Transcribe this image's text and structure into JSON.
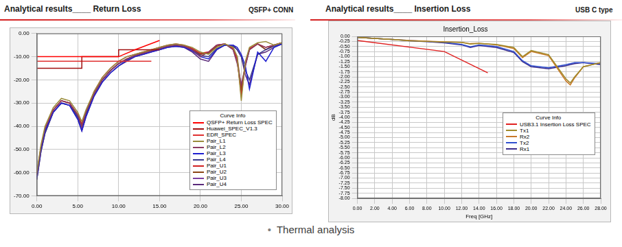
{
  "slide": {
    "panels": [
      {
        "heading": "Analytical results____ Return Loss",
        "tag": "QSFP+ CONN"
      },
      {
        "heading": "Analytical results____ Insertion Loss",
        "tag": "USB C type"
      }
    ],
    "caption": "Thermal analysis"
  },
  "chart_data": [
    {
      "type": "line",
      "grid": true,
      "legend": "lower right",
      "legend_title": "Curve Info",
      "xlim": [
        0,
        30
      ],
      "xticks": [
        {
          "value": 0,
          "label": "0.00"
        },
        {
          "value": 5,
          "label": "5.00"
        },
        {
          "value": 10,
          "label": "10.00"
        },
        {
          "value": 15,
          "label": "15.00"
        },
        {
          "value": 20,
          "label": "20.00"
        },
        {
          "value": 25,
          "label": "25.00"
        },
        {
          "value": 30,
          "label": "30.00"
        }
      ],
      "ylim": [
        -70,
        0
      ],
      "yticks": [
        {
          "value": -70,
          "label": "-70.00"
        },
        {
          "value": -60,
          "label": "-60.00"
        },
        {
          "value": -50,
          "label": "-50.00"
        },
        {
          "value": -40,
          "label": "-40.00"
        },
        {
          "value": -30,
          "label": "-30.00"
        },
        {
          "value": -20,
          "label": "-20.00"
        },
        {
          "value": -10,
          "label": "-10.00"
        },
        {
          "value": 0,
          "label": "0.00"
        }
      ],
      "x": [
        0,
        0.5,
        1,
        2,
        3,
        4,
        5,
        5.5,
        6,
        7,
        8,
        9,
        10,
        11,
        12,
        13,
        14,
        15,
        16,
        17,
        18,
        19,
        20,
        21,
        22,
        23,
        24,
        24.5,
        25,
        25.5,
        26,
        27,
        28,
        29,
        30
      ],
      "series": [
        {
          "name": "QSFP+ Return Loss SPEC",
          "color": "#ff0000",
          "x": [
            0,
            10,
            12,
            15
          ],
          "values": [
            -10,
            -10,
            -7,
            -3
          ]
        },
        {
          "name": "Huawei_SPEC_V1.3",
          "color": "#a01010",
          "x": [
            0,
            5.5,
            5.5,
            10,
            10,
            15
          ],
          "values": [
            -15,
            -15,
            -10,
            -10,
            -7,
            -7
          ]
        },
        {
          "name": "EDR_SPEC",
          "color": "#e03030",
          "x": [
            0,
            14
          ],
          "values": [
            -12,
            -12
          ]
        },
        {
          "name": "Pair_L1",
          "color": "#9a8c3c",
          "values": [
            -60,
            -48,
            -40,
            -32,
            -28,
            -29,
            -34,
            -38,
            -33,
            -25,
            -19,
            -15,
            -12,
            -10,
            -9,
            -8,
            -7,
            -6,
            -5,
            -4.5,
            -5,
            -6,
            -8,
            -9,
            -6,
            -4.5,
            -6,
            -10,
            -29,
            -12,
            -6,
            -4,
            -3.5,
            -5,
            -4
          ]
        },
        {
          "name": "Pair_L2",
          "color": "#8b3a62",
          "values": [
            -61,
            -49,
            -41,
            -33,
            -29,
            -30,
            -35,
            -40,
            -34,
            -26,
            -20,
            -16,
            -13,
            -11,
            -9.5,
            -8.5,
            -7.5,
            -6.5,
            -5.5,
            -5,
            -5.5,
            -7,
            -10,
            -8,
            -5,
            -4.5,
            -7,
            -13,
            -22,
            -14,
            -7,
            -4.5,
            -6,
            -5,
            -4
          ]
        },
        {
          "name": "Pair_L3",
          "color": "#1f1fd0",
          "values": [
            -62,
            -50,
            -42,
            -34,
            -30,
            -31,
            -37,
            -42,
            -36,
            -27,
            -21,
            -17,
            -14,
            -11.5,
            -10,
            -9,
            -8,
            -7,
            -6,
            -5.5,
            -6,
            -7.5,
            -10,
            -11,
            -7,
            -5,
            -5,
            -6,
            -9,
            -14,
            -24,
            -8,
            -12,
            -6,
            -4.5
          ]
        },
        {
          "name": "Pair_L4",
          "color": "#3a3a8c",
          "values": [
            -63,
            -51,
            -43,
            -34,
            -30,
            -31,
            -36,
            -40,
            -35,
            -26,
            -20,
            -16,
            -13,
            -11,
            -9.5,
            -8.5,
            -7.5,
            -6.5,
            -5.5,
            -5,
            -5.5,
            -7,
            -9.5,
            -10,
            -6.5,
            -5,
            -5.5,
            -7,
            -10,
            -16,
            -20,
            -9,
            -7,
            -5.5,
            -4.5
          ]
        },
        {
          "name": "Pair_U1",
          "color": "#d02020",
          "values": [
            -60,
            -49,
            -41,
            -33,
            -29,
            -30,
            -35,
            -39,
            -34,
            -25,
            -19,
            -15,
            -12,
            -10,
            -9,
            -8,
            -7,
            -6,
            -5,
            -4.5,
            -5,
            -6.5,
            -8.5,
            -8,
            -5,
            -4.5,
            -6.5,
            -11,
            -27,
            -13,
            -6.5,
            -4.5,
            -6,
            -5,
            -4
          ]
        },
        {
          "name": "Pair_U2",
          "color": "#8b4513",
          "values": [
            -61,
            -50,
            -42,
            -33,
            -29,
            -30,
            -36,
            -40,
            -35,
            -26,
            -20,
            -16,
            -13,
            -11,
            -9.5,
            -8.5,
            -7.5,
            -6.5,
            -5.5,
            -5,
            -5.5,
            -7,
            -9,
            -8.5,
            -5.5,
            -4.5,
            -6,
            -10,
            -24,
            -13,
            -7,
            -4.5,
            -7,
            -5,
            -4
          ]
        },
        {
          "name": "Pair_U3",
          "color": "#7b3fa0",
          "values": [
            -62,
            -50,
            -42,
            -33,
            -29,
            -30,
            -36,
            -41,
            -35,
            -26,
            -20,
            -16,
            -13,
            -11,
            -9.5,
            -8.5,
            -7.5,
            -6.5,
            -5.5,
            -5,
            -5.5,
            -7,
            -9,
            -8,
            -5,
            -4.5,
            -7,
            -12,
            -25,
            -14,
            -7,
            -4.5,
            -7,
            -5,
            -4
          ]
        },
        {
          "name": "Pair_U4",
          "color": "#5a2a7a",
          "values": [
            -63,
            -51,
            -43,
            -34,
            -30,
            -31,
            -37,
            -42,
            -36,
            -27,
            -21,
            -17,
            -14,
            -12,
            -10,
            -9,
            -8,
            -7,
            -6,
            -5.5,
            -6,
            -8,
            -11,
            -12,
            -7,
            -5,
            -5,
            -7,
            -10,
            -18,
            -22,
            -9,
            -8,
            -6,
            -4.5
          ]
        }
      ]
    },
    {
      "type": "line",
      "title": "Insertion_Loss",
      "x_label": "Freq [GHz]",
      "y_label": "dB",
      "grid": true,
      "legend": "center right",
      "legend_title": "Curve Info",
      "xlim": [
        0,
        28
      ],
      "xticks": [
        {
          "value": 0,
          "label": "0.00"
        },
        {
          "value": 2,
          "label": "2.00"
        },
        {
          "value": 4,
          "label": "4.00"
        },
        {
          "value": 6,
          "label": "6.00"
        },
        {
          "value": 8,
          "label": "8.00"
        },
        {
          "value": 10,
          "label": "10.00"
        },
        {
          "value": 12,
          "label": "12.00"
        },
        {
          "value": 14,
          "label": "14.00"
        },
        {
          "value": 16,
          "label": "16.00"
        },
        {
          "value": 18,
          "label": "18.00"
        },
        {
          "value": 20,
          "label": "20.00"
        },
        {
          "value": 22,
          "label": "22.00"
        },
        {
          "value": 24,
          "label": "24.00"
        },
        {
          "value": 26,
          "label": "26.00"
        },
        {
          "value": 28,
          "label": "28.00"
        }
      ],
      "ylim": [
        -8,
        0
      ],
      "yticks": [
        {
          "value": -8,
          "label": "-8.00"
        },
        {
          "value": -7.75,
          "label": "-7.75"
        },
        {
          "value": -7.5,
          "label": "-7.50"
        },
        {
          "value": -7.25,
          "label": "-7.25"
        },
        {
          "value": -7,
          "label": "-7.00"
        },
        {
          "value": -6.75,
          "label": "-6.75"
        },
        {
          "value": -6.5,
          "label": "-6.50"
        },
        {
          "value": -6.25,
          "label": "-6.25"
        },
        {
          "value": -6,
          "label": "-6.00"
        },
        {
          "value": -5.75,
          "label": "-5.75"
        },
        {
          "value": -5.5,
          "label": "-5.50"
        },
        {
          "value": -5.25,
          "label": "-5.25"
        },
        {
          "value": -5,
          "label": "-5.00"
        },
        {
          "value": -4.75,
          "label": "-4.75"
        },
        {
          "value": -4.5,
          "label": "-4.50"
        },
        {
          "value": -4.25,
          "label": "-4.25"
        },
        {
          "value": -4,
          "label": "-4.00"
        },
        {
          "value": -3.75,
          "label": "-3.75"
        },
        {
          "value": -3.5,
          "label": "-3.50"
        },
        {
          "value": -3.25,
          "label": "-3.25"
        },
        {
          "value": -3,
          "label": "-3.00"
        },
        {
          "value": -2.75,
          "label": "-2.75"
        },
        {
          "value": -2.5,
          "label": "-2.50"
        },
        {
          "value": -2.25,
          "label": "-2.25"
        },
        {
          "value": -2,
          "label": "-2.00"
        },
        {
          "value": -1.75,
          "label": "-1.75"
        },
        {
          "value": -1.5,
          "label": "-1.50"
        },
        {
          "value": -1.25,
          "label": "-1.25"
        },
        {
          "value": -1,
          "label": "-1.00"
        },
        {
          "value": -0.75,
          "label": "-0.75"
        },
        {
          "value": -0.5,
          "label": "-0.50"
        },
        {
          "value": -0.25,
          "label": "-0.25"
        },
        {
          "value": 0,
          "label": "0.00"
        }
      ],
      "x": [
        0,
        2,
        4,
        6,
        8,
        10,
        12,
        13,
        14,
        16,
        18,
        19,
        20,
        22,
        24,
        24.5,
        25,
        26,
        28
      ],
      "series": [
        {
          "name": "USB3.1 Insertion Loss SPEC",
          "color": "#e02020",
          "x": [
            0,
            10,
            15
          ],
          "values": [
            -0.2,
            -0.75,
            -1.8
          ]
        },
        {
          "name": "Tx1",
          "color": "#a08a2a",
          "values": [
            -0.05,
            -0.1,
            -0.15,
            -0.22,
            -0.25,
            -0.28,
            -0.3,
            -0.38,
            -0.35,
            -0.4,
            -0.55,
            -1.0,
            -0.7,
            -0.9,
            -2.1,
            -2.3,
            -2.0,
            -1.5,
            -1.3
          ]
        },
        {
          "name": "Rx2",
          "color": "#c87828",
          "values": [
            -0.05,
            -0.1,
            -0.15,
            -0.2,
            -0.24,
            -0.27,
            -0.3,
            -0.36,
            -0.34,
            -0.42,
            -0.6,
            -1.05,
            -0.75,
            -0.95,
            -2.2,
            -2.4,
            -2.05,
            -1.5,
            -1.3
          ]
        },
        {
          "name": "Tx2",
          "color": "#3050d0",
          "values": [
            -0.05,
            -0.1,
            -0.15,
            -0.2,
            -0.25,
            -0.3,
            -0.4,
            -0.52,
            -0.42,
            -0.5,
            -0.75,
            -1.2,
            -1.45,
            -1.55,
            -1.4,
            -1.35,
            -1.3,
            -1.3,
            -1.35
          ]
        },
        {
          "name": "Rx1",
          "color": "#3a2a8a",
          "values": [
            -0.05,
            -0.1,
            -0.15,
            -0.22,
            -0.26,
            -0.32,
            -0.42,
            -0.55,
            -0.45,
            -0.55,
            -0.8,
            -1.25,
            -1.5,
            -1.6,
            -1.45,
            -1.4,
            -1.35,
            -1.3,
            -1.4
          ]
        }
      ]
    }
  ]
}
